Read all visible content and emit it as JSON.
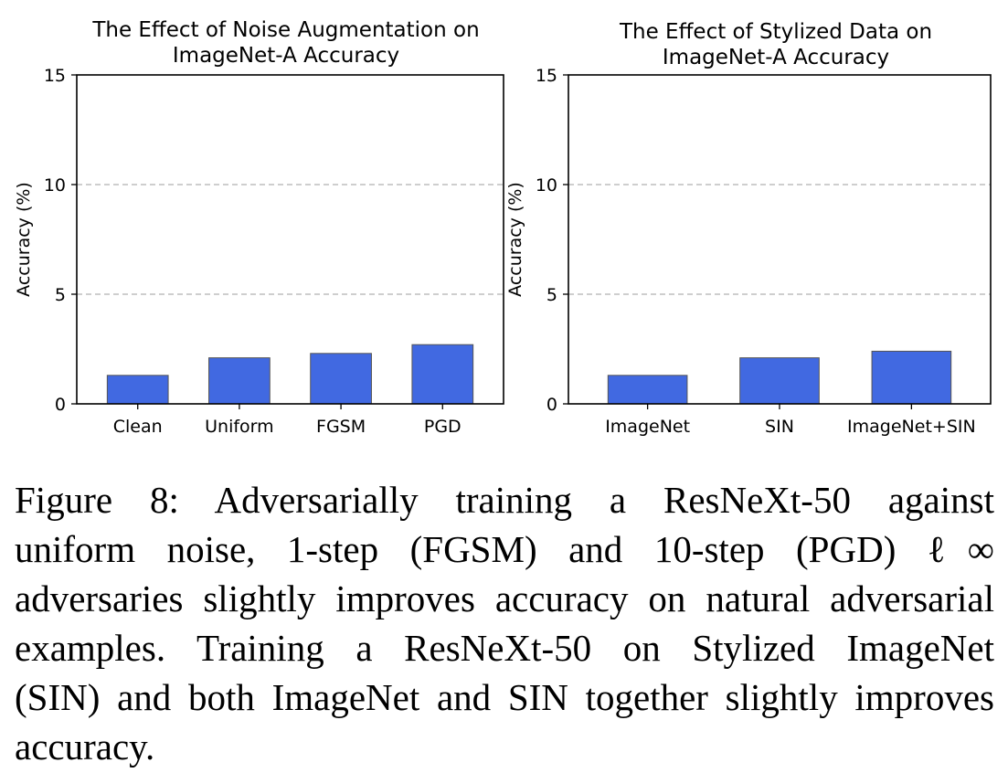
{
  "chart_data": [
    {
      "type": "bar",
      "title": [
        "The Effect of Noise Augmentation on",
        "ImageNet-A Accuracy"
      ],
      "ylabel": "Accuracy (%)",
      "xlabel": "",
      "categories": [
        "Clean",
        "Uniform",
        "FGSM",
        "PGD"
      ],
      "values": [
        1.3,
        2.1,
        2.3,
        2.7
      ],
      "ylim": [
        0,
        15
      ],
      "yticks": [
        0,
        5,
        10,
        15
      ],
      "grid": "horizontal dashed",
      "bar_color": "#4169e1"
    },
    {
      "type": "bar",
      "title": [
        "The Effect of Stylized Data on",
        "ImageNet-A Accuracy"
      ],
      "ylabel": "Accuracy (%)",
      "xlabel": "",
      "categories": [
        "ImageNet",
        "SIN",
        "ImageNet+SIN"
      ],
      "values": [
        1.3,
        2.1,
        2.4
      ],
      "ylim": [
        0,
        15
      ],
      "yticks": [
        0,
        5,
        10,
        15
      ],
      "grid": "horizontal dashed",
      "bar_color": "#4169e1"
    }
  ],
  "caption": {
    "lines": [
      "Figure 8:  Adversarially training a ResNeXt-50 against",
      "uniform noise, 1-step (FGSM) and 10-step (PGD) ℓ∞",
      "adversaries slightly improves accuracy on natural adversarial",
      "examples.  Training a ResNeXt-50 on Stylized ImageNet",
      "(SIN) and both ImageNet and SIN together slightly improves",
      "accuracy."
    ]
  }
}
